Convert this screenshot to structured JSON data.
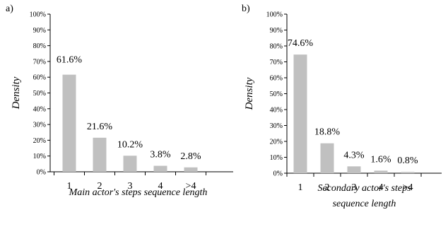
{
  "chart_data": [
    {
      "type": "bar",
      "panel_label": "a)",
      "categories": [
        "1",
        "2",
        "3",
        "4",
        ">4"
      ],
      "values": [
        61.6,
        21.6,
        10.2,
        3.8,
        2.8
      ],
      "data_labels": [
        "61.6%",
        "21.6%",
        "10.2%",
        "3.8%",
        "2.8%"
      ],
      "ylabel": "Density",
      "xlabel_lines": [
        "Main actor's steps sequence length"
      ],
      "ylim": [
        0,
        100
      ],
      "yticks": [
        "0%",
        "10%",
        "20%",
        "30%",
        "40%",
        "50%",
        "60%",
        "70%",
        "80%",
        "90%",
        "100%"
      ],
      "bar_color": "#c0c0c0",
      "grid": false
    },
    {
      "type": "bar",
      "panel_label": "b)",
      "categories": [
        "1",
        "2",
        "3",
        "4",
        ">4"
      ],
      "values": [
        74.6,
        18.8,
        4.3,
        1.6,
        0.8
      ],
      "data_labels": [
        "74.6%",
        "18.8%",
        "4.3%",
        "1.6%",
        "0.8%"
      ],
      "ylabel": "Density",
      "xlabel_lines": [
        "Secondary actor's steps",
        "sequence length"
      ],
      "ylim": [
        0,
        100
      ],
      "yticks": [
        "0%",
        "10%",
        "20%",
        "30%",
        "40%",
        "50%",
        "60%",
        "70%",
        "80%",
        "90%",
        "100%"
      ],
      "bar_color": "#c0c0c0",
      "grid": false
    }
  ]
}
